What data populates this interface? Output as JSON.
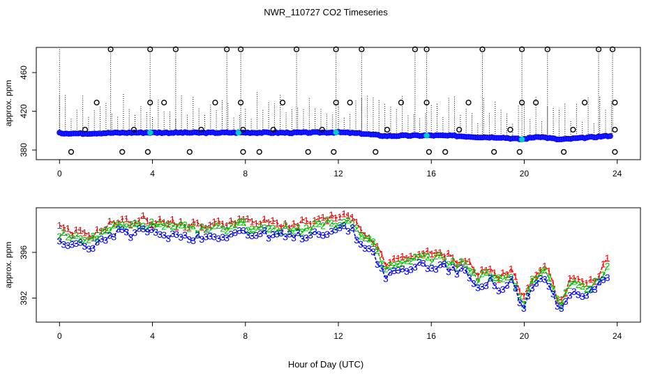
{
  "figure": {
    "title": "NWR_110727  CO2 Timeseries",
    "xlabel": "Hour of Day (UTC)"
  },
  "colors": {
    "frame": "#000000",
    "line": "#0000ff",
    "point_fill": "#1a1aff",
    "series1": "#ff0000",
    "series2": "#00c000",
    "series3": "#0000ff",
    "highlight": "#00cccc"
  },
  "chart_data": [
    {
      "type": "scatter",
      "title": "",
      "xlabel": "",
      "ylabel": "approx. ppm",
      "xlim": [
        -1,
        25
      ],
      "ylim": [
        370,
        486
      ],
      "xticks": [
        0,
        4,
        8,
        12,
        16,
        20,
        24
      ],
      "yticks": [
        380,
        420,
        460
      ],
      "baseline": [
        {
          "x": 0,
          "y": 397.4
        },
        {
          "x": 1,
          "y": 397.0
        },
        {
          "x": 2,
          "y": 397.6
        },
        {
          "x": 3,
          "y": 397.9
        },
        {
          "x": 4,
          "y": 398.0
        },
        {
          "x": 6,
          "y": 397.8
        },
        {
          "x": 8,
          "y": 398.0
        },
        {
          "x": 10,
          "y": 397.8
        },
        {
          "x": 12,
          "y": 398.3
        },
        {
          "x": 13,
          "y": 397.0
        },
        {
          "x": 14,
          "y": 394.5
        },
        {
          "x": 15,
          "y": 394.8
        },
        {
          "x": 16,
          "y": 395.0
        },
        {
          "x": 17,
          "y": 394.6
        },
        {
          "x": 18,
          "y": 393.4
        },
        {
          "x": 19,
          "y": 393.0
        },
        {
          "x": 19.9,
          "y": 391.0
        },
        {
          "x": 20.6,
          "y": 394.0
        },
        {
          "x": 21.5,
          "y": 390.8
        },
        {
          "x": 22.5,
          "y": 392.4
        },
        {
          "x": 23.7,
          "y": 394.8
        }
      ],
      "outliers_high": [
        2.2,
        3.9,
        5.0,
        7.2,
        7.8,
        10.2,
        11.9,
        13.0,
        15.3,
        15.8,
        18.2,
        19.9,
        21.0,
        23.2,
        23.8
      ],
      "outliers_mid": [
        1.6,
        3.9,
        4.5,
        6.7,
        7.8,
        9.6,
        11.9,
        12.5,
        14.7,
        15.8,
        17.6,
        19.9,
        20.5,
        22.6,
        23.9
      ],
      "outliers_low": [
        0.5,
        2.7,
        3.8,
        5.6,
        7.9,
        8.6,
        10.7,
        11.8,
        13.6,
        15.9,
        16.6,
        18.7,
        19.8,
        21.7,
        23.9
      ],
      "outliers_slight": [
        1.1,
        3.2,
        6.1,
        7.9,
        9.2,
        11.3,
        14.1,
        17.2,
        19.4,
        22.1,
        23.9
      ]
    },
    {
      "type": "line",
      "title": "",
      "xlabel": "Hour of Day (UTC)",
      "ylabel": "approx. ppm",
      "xlim": [
        -1,
        25
      ],
      "ylim": [
        389.9,
        399.9
      ],
      "xticks": [
        0,
        4,
        8,
        12,
        16,
        20,
        24
      ],
      "yticks": [
        392,
        396
      ],
      "baseline": [
        {
          "x": 0,
          "y": 397.4
        },
        {
          "x": 0.5,
          "y": 396.9
        },
        {
          "x": 1,
          "y": 397.0
        },
        {
          "x": 1.5,
          "y": 396.8
        },
        {
          "x": 2,
          "y": 397.6
        },
        {
          "x": 2.5,
          "y": 398.0
        },
        {
          "x": 3,
          "y": 397.9
        },
        {
          "x": 3.5,
          "y": 398.2
        },
        {
          "x": 4,
          "y": 398.0
        },
        {
          "x": 5,
          "y": 397.8
        },
        {
          "x": 6,
          "y": 397.6
        },
        {
          "x": 7,
          "y": 397.8
        },
        {
          "x": 7.8,
          "y": 398.2
        },
        {
          "x": 8.2,
          "y": 397.8
        },
        {
          "x": 9,
          "y": 397.9
        },
        {
          "x": 10,
          "y": 397.6
        },
        {
          "x": 11,
          "y": 398.0
        },
        {
          "x": 12,
          "y": 398.3
        },
        {
          "x": 12.5,
          "y": 398.4
        },
        {
          "x": 13,
          "y": 397.0
        },
        {
          "x": 13.5,
          "y": 396.3
        },
        {
          "x": 14,
          "y": 394.2
        },
        {
          "x": 14.5,
          "y": 394.6
        },
        {
          "x": 15,
          "y": 394.8
        },
        {
          "x": 15.5,
          "y": 395.3
        },
        {
          "x": 16,
          "y": 395.0
        },
        {
          "x": 16.5,
          "y": 395.2
        },
        {
          "x": 17,
          "y": 394.6
        },
        {
          "x": 17.5,
          "y": 394.6
        },
        {
          "x": 18,
          "y": 393.4
        },
        {
          "x": 18.5,
          "y": 393.8
        },
        {
          "x": 19,
          "y": 393.0
        },
        {
          "x": 19.5,
          "y": 393.8
        },
        {
          "x": 19.9,
          "y": 391.0
        },
        {
          "x": 20.3,
          "y": 393.0
        },
        {
          "x": 20.8,
          "y": 394.2
        },
        {
          "x": 21.2,
          "y": 392.8
        },
        {
          "x": 21.5,
          "y": 390.8
        },
        {
          "x": 22,
          "y": 393.0
        },
        {
          "x": 22.5,
          "y": 392.4
        },
        {
          "x": 23,
          "y": 392.8
        },
        {
          "x": 23.7,
          "y": 394.8
        }
      ],
      "series": [
        {
          "marker": "1",
          "offset": 0.75
        },
        {
          "marker": "2",
          "offset": 0.35
        },
        {
          "marker": "3",
          "offset": -0.3
        }
      ],
      "point_step_hours": 0.18
    }
  ]
}
